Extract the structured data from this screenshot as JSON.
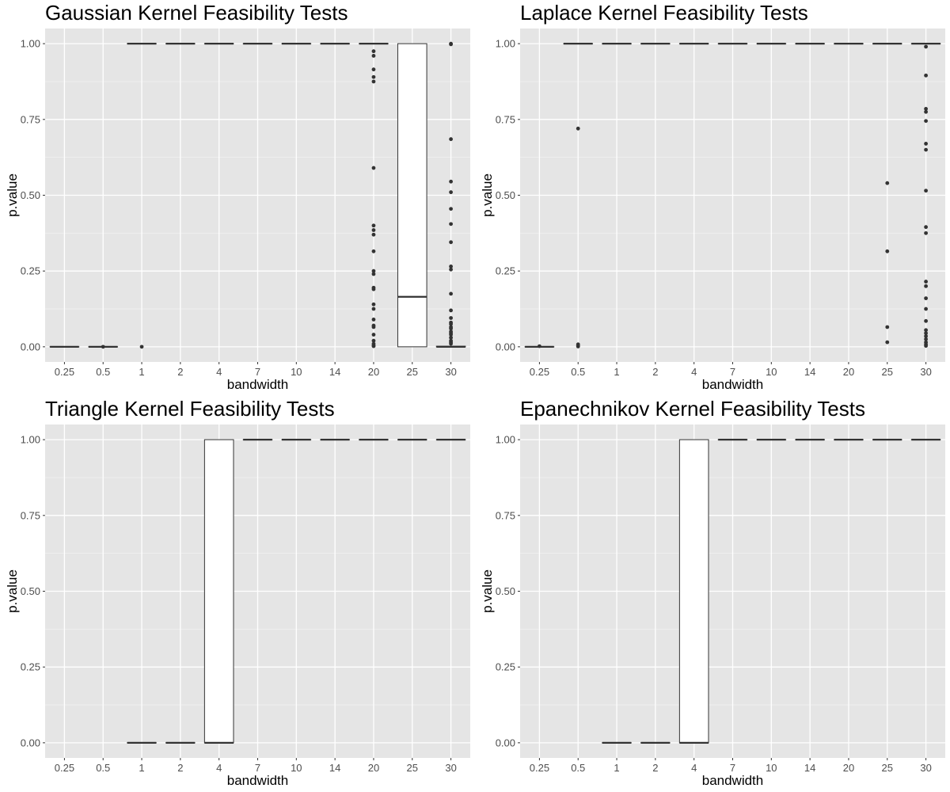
{
  "chart_data": [
    {
      "type": "box",
      "title": "Gaussian Kernel Feasibility Tests",
      "xlabel": "bandwidth",
      "ylabel": "p.value",
      "ylim": [
        -0.05,
        1.05
      ],
      "yticks": [
        "0.00",
        "0.25",
        "0.50",
        "0.75",
        "1.00"
      ],
      "categories": [
        "0.25",
        "0.5",
        "1",
        "2",
        "4",
        "7",
        "10",
        "14",
        "20",
        "25",
        "30"
      ],
      "boxes": [
        {
          "lower": 0,
          "q1": 0,
          "median": 0,
          "q3": 0,
          "upper": 0,
          "outliers": []
        },
        {
          "lower": 0,
          "q1": 0,
          "median": 0,
          "q3": 0,
          "upper": 0,
          "outliers": [
            0
          ]
        },
        {
          "lower": 1,
          "q1": 1,
          "median": 1,
          "q3": 1,
          "upper": 1,
          "outliers": [
            0
          ]
        },
        {
          "lower": 1,
          "q1": 1,
          "median": 1,
          "q3": 1,
          "upper": 1,
          "outliers": []
        },
        {
          "lower": 1,
          "q1": 1,
          "median": 1,
          "q3": 1,
          "upper": 1,
          "outliers": []
        },
        {
          "lower": 1,
          "q1": 1,
          "median": 1,
          "q3": 1,
          "upper": 1,
          "outliers": []
        },
        {
          "lower": 1,
          "q1": 1,
          "median": 1,
          "q3": 1,
          "upper": 1,
          "outliers": []
        },
        {
          "lower": 1,
          "q1": 1,
          "median": 1,
          "q3": 1,
          "upper": 1,
          "outliers": []
        },
        {
          "lower": 1,
          "q1": 1,
          "median": 1,
          "q3": 1,
          "upper": 1,
          "outliers": [
            0.975,
            0.96,
            0.915,
            0.89,
            0.875,
            0.59,
            0.4,
            0.385,
            0.37,
            0.315,
            0.25,
            0.24,
            0.195,
            0.19,
            0.14,
            0.125,
            0.09,
            0.07,
            0.065,
            0.04,
            0.02,
            0.01,
            0.005,
            0.002
          ]
        },
        {
          "lower": 0,
          "q1": 0,
          "median": 0.165,
          "q3": 1,
          "upper": 1,
          "outliers": []
        },
        {
          "lower": 0,
          "q1": 0,
          "median": 0,
          "q3": 0.002,
          "upper": 0.004,
          "outliers": [
            1,
            0.998,
            0.685,
            0.545,
            0.51,
            0.455,
            0.405,
            0.345,
            0.265,
            0.255,
            0.175,
            0.12,
            0.095,
            0.08,
            0.075,
            0.065,
            0.06,
            0.05,
            0.045,
            0.04,
            0.03,
            0.02,
            0.015,
            0.01
          ]
        }
      ]
    },
    {
      "type": "box",
      "title": "Laplace Kernel Feasibility Tests",
      "xlabel": "bandwidth",
      "ylabel": "p.value",
      "ylim": [
        -0.05,
        1.05
      ],
      "yticks": [
        "0.00",
        "0.25",
        "0.50",
        "0.75",
        "1.00"
      ],
      "categories": [
        "0.25",
        "0.5",
        "1",
        "2",
        "4",
        "7",
        "10",
        "14",
        "20",
        "25",
        "30"
      ],
      "boxes": [
        {
          "lower": 0,
          "q1": 0,
          "median": 0,
          "q3": 0,
          "upper": 0,
          "outliers": [
            0.002
          ]
        },
        {
          "lower": 1,
          "q1": 1,
          "median": 1,
          "q3": 1,
          "upper": 1,
          "outliers": [
            0.72,
            0.008,
            0.004,
            0.001
          ]
        },
        {
          "lower": 1,
          "q1": 1,
          "median": 1,
          "q3": 1,
          "upper": 1,
          "outliers": []
        },
        {
          "lower": 1,
          "q1": 1,
          "median": 1,
          "q3": 1,
          "upper": 1,
          "outliers": []
        },
        {
          "lower": 1,
          "q1": 1,
          "median": 1,
          "q3": 1,
          "upper": 1,
          "outliers": []
        },
        {
          "lower": 1,
          "q1": 1,
          "median": 1,
          "q3": 1,
          "upper": 1,
          "outliers": []
        },
        {
          "lower": 1,
          "q1": 1,
          "median": 1,
          "q3": 1,
          "upper": 1,
          "outliers": []
        },
        {
          "lower": 1,
          "q1": 1,
          "median": 1,
          "q3": 1,
          "upper": 1,
          "outliers": []
        },
        {
          "lower": 1,
          "q1": 1,
          "median": 1,
          "q3": 1,
          "upper": 1,
          "outliers": []
        },
        {
          "lower": 1,
          "q1": 1,
          "median": 1,
          "q3": 1,
          "upper": 1,
          "outliers": [
            0.54,
            0.315,
            0.065,
            0.015
          ]
        },
        {
          "lower": 1,
          "q1": 1,
          "median": 1,
          "q3": 1,
          "upper": 1,
          "outliers": [
            0.99,
            0.895,
            0.785,
            0.775,
            0.745,
            0.67,
            0.65,
            0.515,
            0.395,
            0.375,
            0.215,
            0.2,
            0.16,
            0.125,
            0.085,
            0.055,
            0.045,
            0.035,
            0.025,
            0.015,
            0.008,
            0.003
          ]
        }
      ]
    },
    {
      "type": "box",
      "title": "Triangle Kernel Feasibility Tests",
      "xlabel": "bandwidth",
      "ylabel": "p.value",
      "ylim": [
        -0.05,
        1.05
      ],
      "yticks": [
        "0.00",
        "0.25",
        "0.50",
        "0.75",
        "1.00"
      ],
      "categories": [
        "0.25",
        "0.5",
        "1",
        "2",
        "4",
        "7",
        "10",
        "14",
        "20",
        "25",
        "30"
      ],
      "boxes": [
        null,
        null,
        {
          "lower": 0,
          "q1": 0,
          "median": 0,
          "q3": 0,
          "upper": 0,
          "outliers": []
        },
        {
          "lower": 0,
          "q1": 0,
          "median": 0,
          "q3": 0,
          "upper": 0,
          "outliers": []
        },
        {
          "lower": 0,
          "q1": 0,
          "median": 0,
          "q3": 1,
          "upper": 1,
          "outliers": []
        },
        {
          "lower": 1,
          "q1": 1,
          "median": 1,
          "q3": 1,
          "upper": 1,
          "outliers": []
        },
        {
          "lower": 1,
          "q1": 1,
          "median": 1,
          "q3": 1,
          "upper": 1,
          "outliers": []
        },
        {
          "lower": 1,
          "q1": 1,
          "median": 1,
          "q3": 1,
          "upper": 1,
          "outliers": []
        },
        {
          "lower": 1,
          "q1": 1,
          "median": 1,
          "q3": 1,
          "upper": 1,
          "outliers": []
        },
        {
          "lower": 1,
          "q1": 1,
          "median": 1,
          "q3": 1,
          "upper": 1,
          "outliers": []
        },
        {
          "lower": 1,
          "q1": 1,
          "median": 1,
          "q3": 1,
          "upper": 1,
          "outliers": []
        }
      ]
    },
    {
      "type": "box",
      "title": "Epanechnikov Kernel Feasibility Tests",
      "xlabel": "bandwidth",
      "ylabel": "p.value",
      "ylim": [
        -0.05,
        1.05
      ],
      "yticks": [
        "0.00",
        "0.25",
        "0.50",
        "0.75",
        "1.00"
      ],
      "categories": [
        "0.25",
        "0.5",
        "1",
        "2",
        "4",
        "7",
        "10",
        "14",
        "20",
        "25",
        "30"
      ],
      "boxes": [
        null,
        null,
        {
          "lower": 0,
          "q1": 0,
          "median": 0,
          "q3": 0,
          "upper": 0,
          "outliers": []
        },
        {
          "lower": 0,
          "q1": 0,
          "median": 0,
          "q3": 0,
          "upper": 0,
          "outliers": []
        },
        {
          "lower": 0,
          "q1": 0,
          "median": 0,
          "q3": 1,
          "upper": 1,
          "outliers": []
        },
        {
          "lower": 1,
          "q1": 1,
          "median": 1,
          "q3": 1,
          "upper": 1,
          "outliers": []
        },
        {
          "lower": 1,
          "q1": 1,
          "median": 1,
          "q3": 1,
          "upper": 1,
          "outliers": []
        },
        {
          "lower": 1,
          "q1": 1,
          "median": 1,
          "q3": 1,
          "upper": 1,
          "outliers": []
        },
        {
          "lower": 1,
          "q1": 1,
          "median": 1,
          "q3": 1,
          "upper": 1,
          "outliers": []
        },
        {
          "lower": 1,
          "q1": 1,
          "median": 1,
          "q3": 1,
          "upper": 1,
          "outliers": []
        },
        {
          "lower": 1,
          "q1": 1,
          "median": 1,
          "q3": 1,
          "upper": 1,
          "outliers": []
        }
      ]
    }
  ],
  "colors": {
    "panel_background": "#E5E5E5",
    "grid_major": "#FFFFFF",
    "grid_minor": "#F2F2F2",
    "box_fill": "#FFFFFF",
    "box_stroke": "#333333",
    "point": "#333333",
    "tick_text": "#4D4D4D"
  }
}
